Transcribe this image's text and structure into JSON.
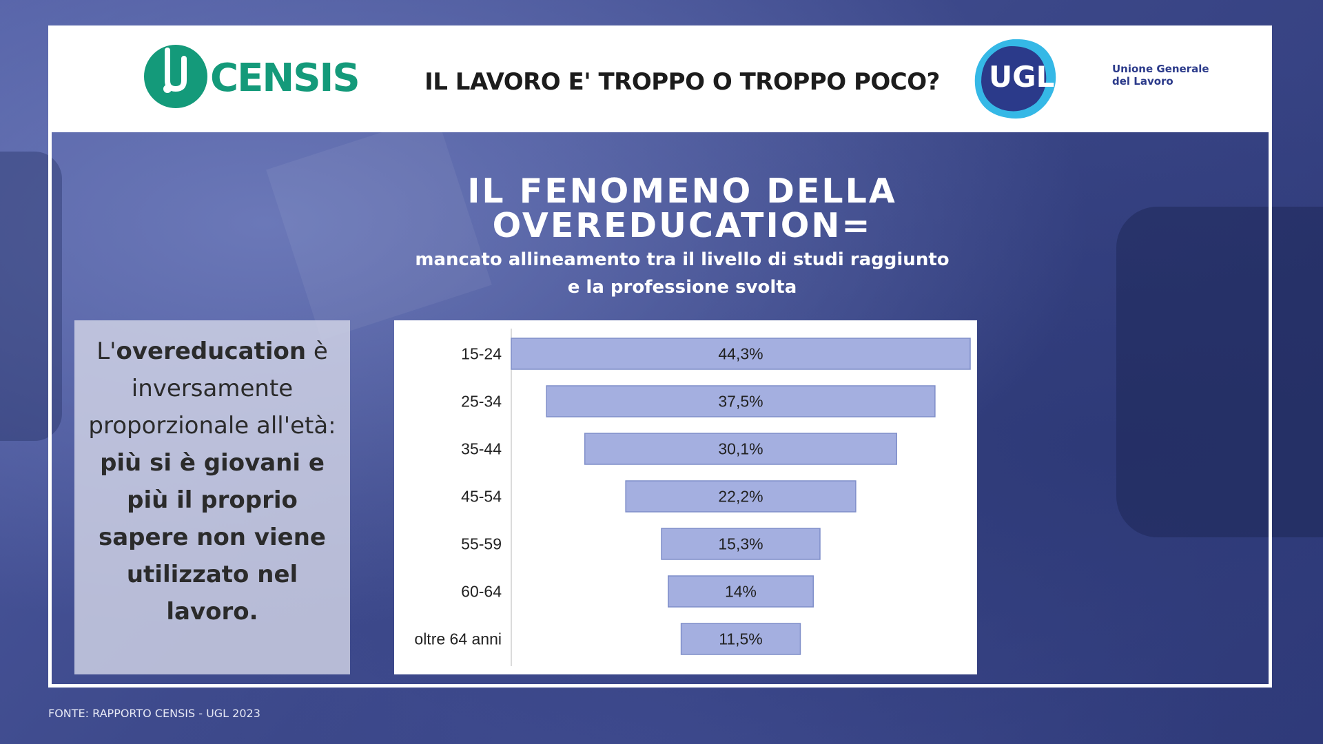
{
  "header": {
    "title": "IL LAVORO E' TROPPO O TROPPO POCO?",
    "censis_logo_text": "CENSIS",
    "ugl_logo_text": "UGL",
    "ugl_name_line1": "Unione Generale",
    "ugl_name_line2": "del Lavoro"
  },
  "main": {
    "title_line1": "IL FENOMENO DELLA",
    "title_line2": "OVEREDUCATION=",
    "subtitle_line1": "mancato allineamento tra il livello di studi raggiunto",
    "subtitle_line2": "e la professione svolta"
  },
  "note": {
    "p1": "L'",
    "p2": "overeducation",
    "p3": " è inversamente proporzionale all'età: ",
    "p4": "più si è giovani e più il proprio sapere non viene utilizzato nel lavoro."
  },
  "footer": {
    "source": "FONTE: RAPPORTO CENSIS - UGL 2023"
  },
  "colors": {
    "bar_fill": "#a4afe0",
    "bar_stroke": "#7f8ec9",
    "censis_green": "#149a7a",
    "ugl_blue": "#2b3a8a",
    "ugl_cyan": "#35b8e6"
  },
  "chart_data": {
    "type": "bar",
    "orientation": "horizontal-funnel",
    "categories": [
      "15-24",
      "25-34",
      "35-44",
      "45-54",
      "55-59",
      "60-64",
      "oltre 64 anni"
    ],
    "values": [
      44.3,
      37.5,
      30.1,
      22.2,
      15.3,
      14,
      11.5
    ],
    "data_labels": [
      "44,3%",
      "37,5%",
      "30,1%",
      "22,2%",
      "15,3%",
      "14%",
      "11,5%"
    ],
    "xlim": [
      0,
      44.3
    ],
    "grid": false,
    "legend": "none"
  }
}
